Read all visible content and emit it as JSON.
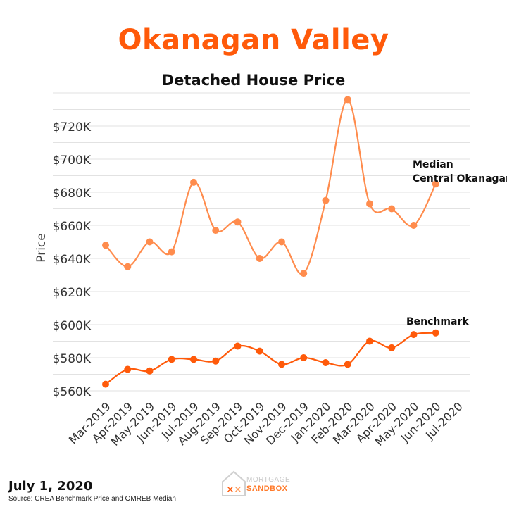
{
  "header": {
    "title": "Okanagan Valley",
    "subtitle": "Detached House Price"
  },
  "footer": {
    "date": "July 1, 2020",
    "source": "Source: CREA Benchmark Price and OMREB Median"
  },
  "logo": {
    "line1": "MORTGAGE",
    "line2": "SANDBOX",
    "icon": "xx-house-logo-icon"
  },
  "colors": {
    "title": "#ff5a0a",
    "median": "#ff8c4d",
    "benchmark": "#ff5a0a",
    "grid": "#e2e2e2"
  },
  "chart_data": {
    "type": "line",
    "title": "Detached House Price",
    "ylabel": "Price",
    "xlabel": "",
    "ylim": [
      560000,
      740000
    ],
    "yticks": [
      560000,
      580000,
      600000,
      620000,
      640000,
      660000,
      680000,
      700000,
      720000
    ],
    "ytick_labels": [
      "$560K",
      "$580K",
      "$600K",
      "$620K",
      "$640K",
      "$660K",
      "$680K",
      "$700K",
      "$720K"
    ],
    "grid": true,
    "categories": [
      "Mar-2019",
      "Apr-2019",
      "May-2019",
      "Jun-2019",
      "Jul-2019",
      "Aug-2019",
      "Sep-2019",
      "Oct-2019",
      "Nov-2019",
      "Dec-2019",
      "Jan-2020",
      "Feb-2020",
      "Mar-2020",
      "Apr-2020",
      "May-2020",
      "Jun-2020",
      "Jul-2020"
    ],
    "series": [
      {
        "name": "Median Central Okanagan",
        "label_lines": [
          "Median",
          "Central Okanagan"
        ],
        "color": "#ff8c4d",
        "values": [
          648000,
          635000,
          650000,
          644000,
          686000,
          657000,
          662000,
          640000,
          650000,
          631000,
          675000,
          736000,
          673000,
          670000,
          660000,
          685000,
          null
        ]
      },
      {
        "name": "Benchmark",
        "label_lines": [
          "Benchmark"
        ],
        "color": "#ff5a0a",
        "values": [
          564000,
          573000,
          572000,
          579000,
          579000,
          578000,
          587000,
          584000,
          576000,
          580000,
          577000,
          576000,
          590000,
          586000,
          594000,
          595000,
          null
        ]
      }
    ]
  }
}
